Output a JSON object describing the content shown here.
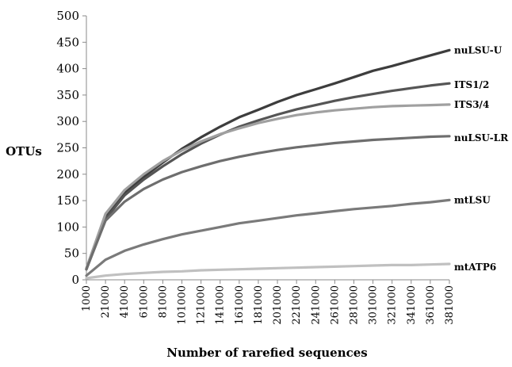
{
  "chart_data": {
    "type": "line",
    "title": "",
    "xlabel": "Number of rarefied sequences",
    "ylabel": "OTUs",
    "xlim": [
      1000,
      381000
    ],
    "ylim": [
      0,
      500
    ],
    "y_ticks": [
      0,
      50,
      100,
      150,
      200,
      250,
      300,
      350,
      400,
      450,
      500
    ],
    "x_ticks": [
      "1000",
      "21000",
      "41000",
      "61000",
      "81000",
      "101000",
      "121000",
      "141000",
      "161000",
      "181000",
      "201000",
      "221000",
      "241000",
      "261000",
      "281000",
      "301000",
      "321000",
      "341000",
      "361000",
      "381000"
    ],
    "grid": false,
    "legend": "series labels at right end of lines",
    "series": [
      {
        "name": "nuLSU-U",
        "color": "#3d3d3d",
        "x": [
          1000,
          21000,
          41000,
          61000,
          81000,
          101000,
          121000,
          141000,
          161000,
          181000,
          201000,
          221000,
          241000,
          261000,
          281000,
          301000,
          321000,
          341000,
          361000,
          381000
        ],
        "y": [
          20,
          120,
          165,
          195,
          222,
          248,
          270,
          290,
          308,
          322,
          337,
          350,
          361,
          372,
          384,
          396,
          405,
          415,
          425,
          435
        ]
      },
      {
        "name": "ITS1/2",
        "color": "#555555",
        "x": [
          1000,
          21000,
          41000,
          61000,
          81000,
          101000,
          121000,
          141000,
          161000,
          181000,
          201000,
          221000,
          241000,
          261000,
          281000,
          301000,
          321000,
          341000,
          361000,
          381000
        ],
        "y": [
          20,
          115,
          160,
          190,
          215,
          238,
          258,
          275,
          290,
          302,
          313,
          323,
          331,
          339,
          346,
          352,
          358,
          363,
          368,
          372
        ]
      },
      {
        "name": "ITS3/4",
        "color": "#a0a0a0",
        "x": [
          1000,
          21000,
          41000,
          61000,
          81000,
          101000,
          121000,
          141000,
          161000,
          181000,
          201000,
          221000,
          241000,
          261000,
          281000,
          301000,
          321000,
          341000,
          361000,
          381000
        ],
        "y": [
          22,
          125,
          170,
          200,
          225,
          245,
          262,
          276,
          287,
          297,
          305,
          312,
          317,
          321,
          324,
          327,
          329,
          330,
          331,
          332
        ]
      },
      {
        "name": "nuLSU-LR",
        "color": "#6e6e6e",
        "x": [
          1000,
          21000,
          41000,
          61000,
          81000,
          101000,
          121000,
          141000,
          161000,
          181000,
          201000,
          221000,
          241000,
          261000,
          281000,
          301000,
          321000,
          341000,
          361000,
          381000
        ],
        "y": [
          20,
          112,
          148,
          172,
          190,
          204,
          215,
          225,
          233,
          240,
          246,
          251,
          255,
          259,
          262,
          265,
          267,
          269,
          271,
          272
        ]
      },
      {
        "name": "mtLSU",
        "color": "#7a7a7a",
        "x": [
          1000,
          21000,
          41000,
          61000,
          81000,
          101000,
          121000,
          141000,
          161000,
          181000,
          201000,
          221000,
          241000,
          261000,
          281000,
          301000,
          321000,
          341000,
          361000,
          381000
        ],
        "y": [
          8,
          38,
          55,
          67,
          77,
          86,
          93,
          100,
          107,
          112,
          117,
          122,
          126,
          130,
          134,
          137,
          140,
          144,
          147,
          151
        ]
      },
      {
        "name": "mtATP6",
        "color": "#c0c0c0",
        "x": [
          1000,
          21000,
          41000,
          61000,
          81000,
          101000,
          121000,
          141000,
          161000,
          181000,
          201000,
          221000,
          241000,
          261000,
          281000,
          301000,
          321000,
          341000,
          361000,
          381000
        ],
        "y": [
          3,
          8,
          11,
          13,
          15,
          16,
          18,
          19,
          20,
          21,
          22,
          23,
          24,
          25,
          26,
          27,
          28,
          28,
          29,
          30
        ]
      }
    ]
  }
}
